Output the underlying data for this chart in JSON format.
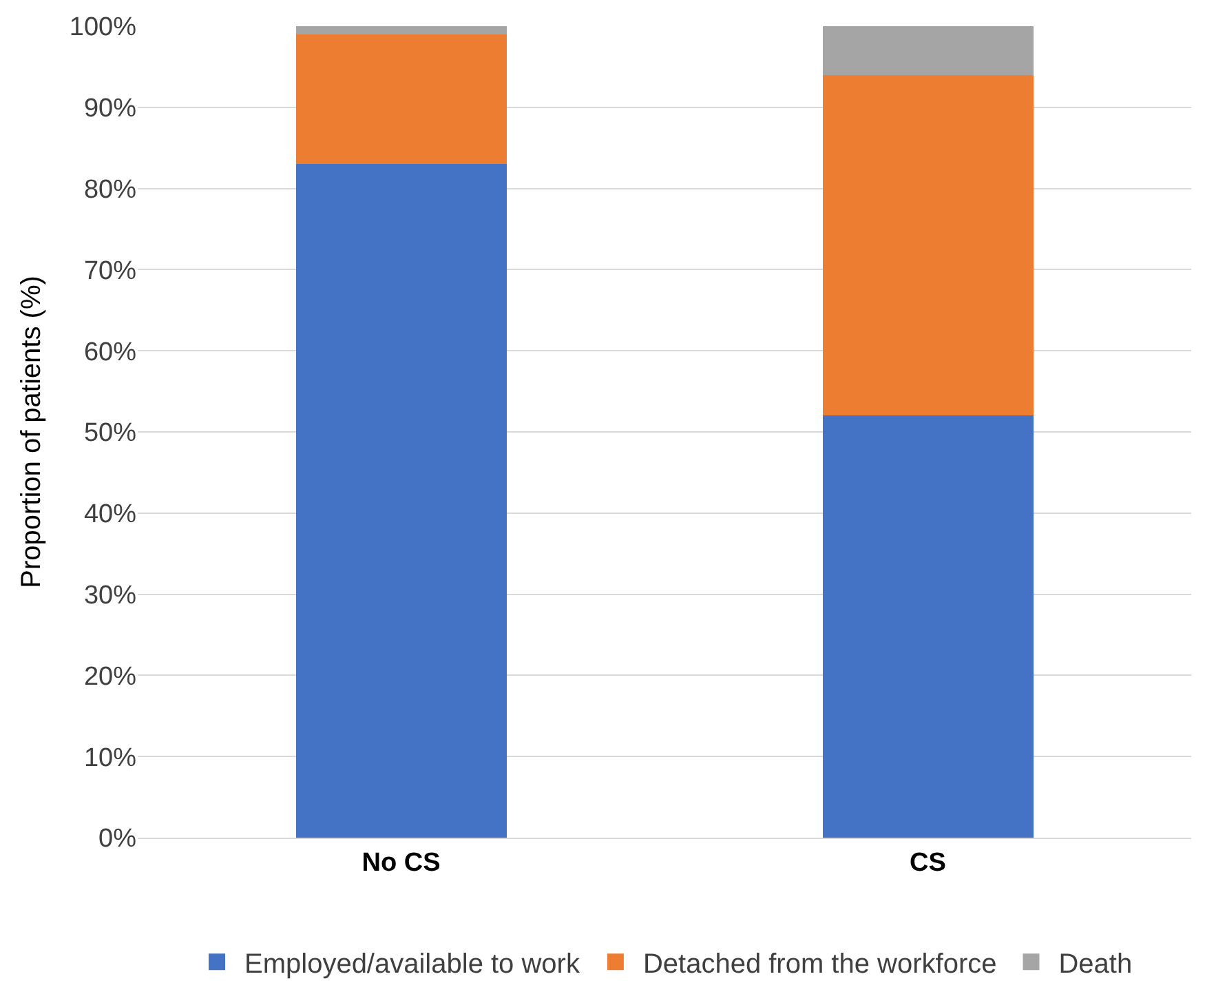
{
  "chart_data": {
    "type": "bar",
    "stacked": true,
    "ylabel": "Proportion of patients (%)",
    "categories": [
      "No CS",
      "CS"
    ],
    "series": [
      {
        "name": "Employed/available to work",
        "color": "#4472c4",
        "values": [
          83,
          52
        ]
      },
      {
        "name": "Detached from the workforce",
        "color": "#ed7d31",
        "values": [
          16,
          42
        ]
      },
      {
        "name": "Death",
        "color": "#a5a5a5",
        "values": [
          1,
          6
        ]
      }
    ],
    "ylim": [
      0,
      100
    ],
    "yticks": [
      {
        "value": 0,
        "label": "0%"
      },
      {
        "value": 10,
        "label": "10%"
      },
      {
        "value": 20,
        "label": "20%"
      },
      {
        "value": 30,
        "label": "30%"
      },
      {
        "value": 40,
        "label": "40%"
      },
      {
        "value": 50,
        "label": "50%"
      },
      {
        "value": 60,
        "label": "60%"
      },
      {
        "value": 70,
        "label": "70%"
      },
      {
        "value": 80,
        "label": "80%"
      },
      {
        "value": 90,
        "label": "90%"
      },
      {
        "value": 100,
        "label": "100%"
      }
    ],
    "grid": "y",
    "legend": "bottom"
  }
}
